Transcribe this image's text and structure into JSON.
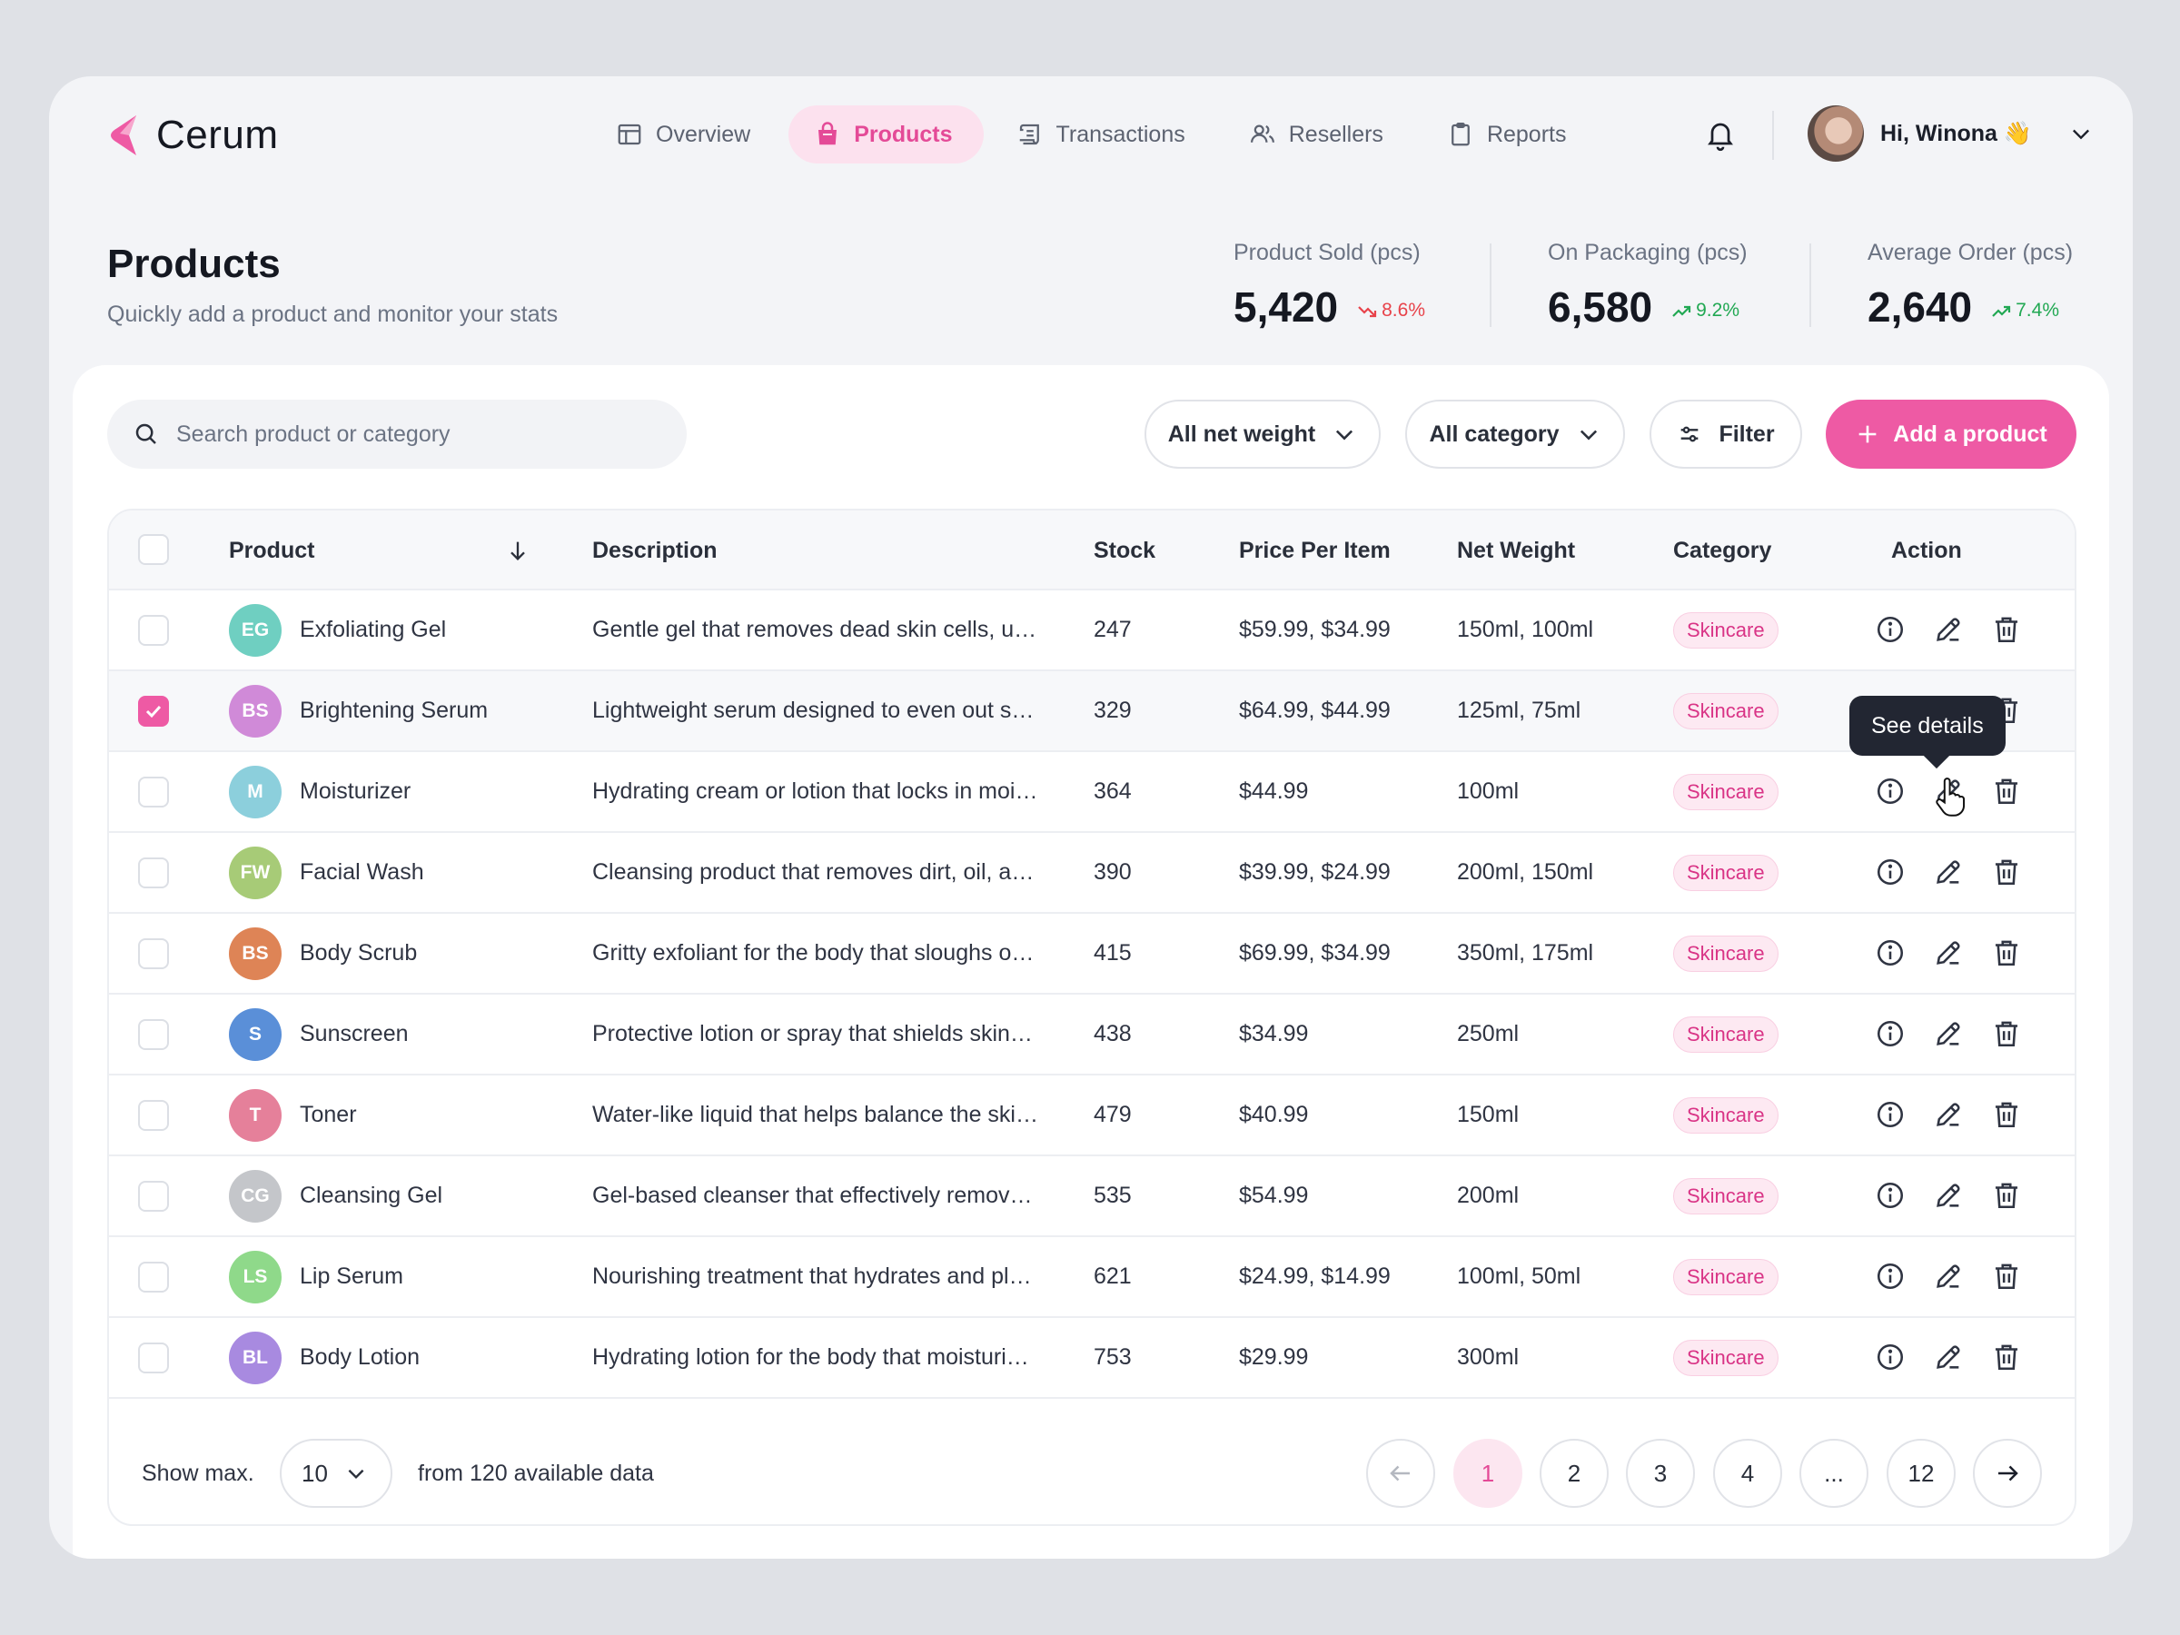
{
  "app": {
    "name": "Cerum"
  },
  "nav": [
    {
      "label": "Overview",
      "icon": "layout-icon",
      "active": false
    },
    {
      "label": "Products",
      "icon": "bag-icon",
      "active": true
    },
    {
      "label": "Transactions",
      "icon": "receipt-icon",
      "active": false
    },
    {
      "label": "Resellers",
      "icon": "users-icon",
      "active": false
    },
    {
      "label": "Reports",
      "icon": "clipboard-icon",
      "active": false
    }
  ],
  "user": {
    "greeting": "Hi, Winona 👋"
  },
  "page": {
    "title": "Products",
    "subtitle": "Quickly add a product and monitor your stats"
  },
  "stats": [
    {
      "label": "Product Sold (pcs)",
      "value": "5,420",
      "delta": "8.6%",
      "trend": "down"
    },
    {
      "label": "On Packaging (pcs)",
      "value": "6,580",
      "delta": "9.2%",
      "trend": "up"
    },
    {
      "label": "Average Order (pcs)",
      "value": "2,640",
      "delta": "7.4%",
      "trend": "up"
    }
  ],
  "toolbar": {
    "search_placeholder": "Search product or category",
    "net_weight_filter": "All net weight",
    "category_filter": "All category",
    "filter_label": "Filter",
    "add_label": "Add a product"
  },
  "table": {
    "columns": [
      "Product",
      "Description",
      "Stock",
      "Price Per Item",
      "Net Weight",
      "Category",
      "Action"
    ],
    "rows": [
      {
        "initials": "EG",
        "color": "#6fcfc1",
        "name": "Exfoliating Gel",
        "description": "Gentle gel that removes dead skin cells, u…",
        "stock": "247",
        "price": "$59.99, $34.99",
        "weight": "150ml, 100ml",
        "category": "Skincare",
        "selected": false
      },
      {
        "initials": "BS",
        "color": "#d08ad8",
        "name": "Brightening Serum",
        "description": "Lightweight serum designed to even out s…",
        "stock": "329",
        "price": "$64.99, $44.99",
        "weight": "125ml, 75ml",
        "category": "Skincare",
        "selected": true
      },
      {
        "initials": "M",
        "color": "#8ccfdc",
        "name": "Moisturizer",
        "description": "Hydrating cream or lotion that locks in moi…",
        "stock": "364",
        "price": "$44.99",
        "weight": "100ml",
        "category": "Skincare",
        "selected": false
      },
      {
        "initials": "FW",
        "color": "#a7cb77",
        "name": "Facial Wash",
        "description": "Cleansing product that removes dirt, oil, a…",
        "stock": "390",
        "price": "$39.99, $24.99",
        "weight": "200ml, 150ml",
        "category": "Skincare",
        "selected": false
      },
      {
        "initials": "BS",
        "color": "#de8456",
        "name": "Body Scrub",
        "description": "Gritty exfoliant for the body that sloughs o…",
        "stock": "415",
        "price": "$69.99, $34.99",
        "weight": "350ml, 175ml",
        "category": "Skincare",
        "selected": false
      },
      {
        "initials": "S",
        "color": "#5a8fd8",
        "name": "Sunscreen",
        "description": "Protective lotion or spray that shields skin…",
        "stock": "438",
        "price": "$34.99",
        "weight": "250ml",
        "category": "Skincare",
        "selected": false
      },
      {
        "initials": "T",
        "color": "#e5809a",
        "name": "Toner",
        "description": "Water-like liquid that helps balance the ski…",
        "stock": "479",
        "price": "$40.99",
        "weight": "150ml",
        "category": "Skincare",
        "selected": false
      },
      {
        "initials": "CG",
        "color": "#c4c6ca",
        "name": "Cleansing Gel",
        "description": "Gel-based cleanser that effectively remov…",
        "stock": "535",
        "price": "$54.99",
        "weight": "200ml",
        "category": "Skincare",
        "selected": false
      },
      {
        "initials": "LS",
        "color": "#8fd98a",
        "name": "Lip Serum",
        "description": "Nourishing treatment that hydrates and pl…",
        "stock": "621",
        "price": "$24.99, $14.99",
        "weight": "100ml, 50ml",
        "category": "Skincare",
        "selected": false
      },
      {
        "initials": "BL",
        "color": "#a88ae0",
        "name": "Body Lotion",
        "description": "Hydrating lotion for the body that moisturi…",
        "stock": "753",
        "price": "$29.99",
        "weight": "300ml",
        "category": "Skincare",
        "selected": false
      }
    ]
  },
  "tooltip": "See details",
  "footer": {
    "show_label": "Show max.",
    "page_size": "10",
    "available": "from 120 available data",
    "pages": [
      "1",
      "2",
      "3",
      "4",
      "...",
      "12"
    ],
    "current_page": "1"
  },
  "colors": {
    "accent": "#ee5aa4",
    "accent_soft": "#fce1ee",
    "down": "#e8424a",
    "up": "#21a853"
  }
}
